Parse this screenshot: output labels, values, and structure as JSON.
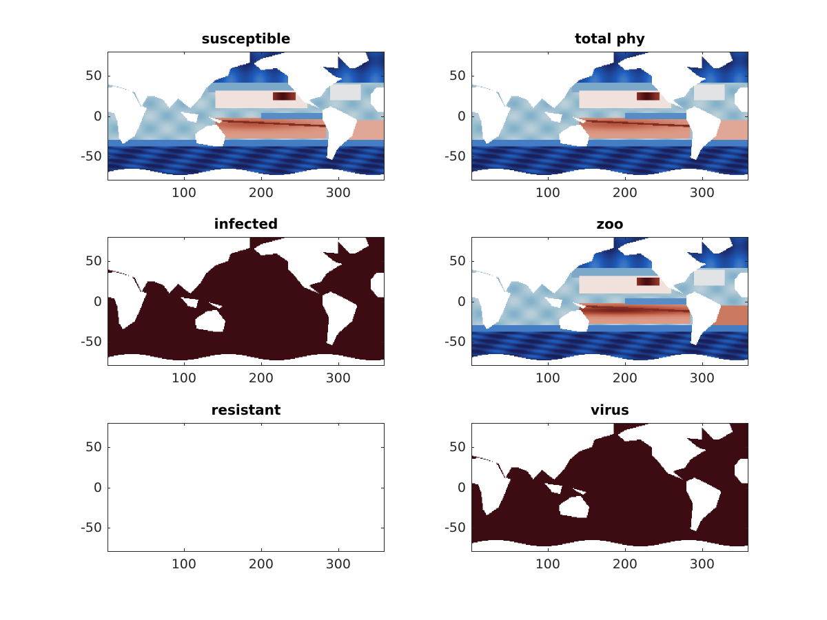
{
  "chart_data": {
    "type": "heatmap",
    "layout": "3x2 subplots",
    "xlim": [
      1,
      360
    ],
    "ylim": [
      -80,
      80
    ],
    "xticks": [
      100,
      200,
      300
    ],
    "xtick_labels": [
      "100",
      "200",
      "300"
    ],
    "yticks": [
      50,
      0,
      -50
    ],
    "ytick_labels": [
      "50",
      "0",
      "-50"
    ],
    "colormap": {
      "low": "#1a1f5a",
      "mid": "#f3ecea",
      "high": "#4a0d12"
    },
    "panels": [
      {
        "title": "susceptible",
        "field": "diverging"
      },
      {
        "title": "total phy",
        "field": "diverging"
      },
      {
        "title": "infected",
        "field": "uniform",
        "color": "#3d0c13"
      },
      {
        "title": "zoo",
        "field": "diverging-zoo"
      },
      {
        "title": "resistant",
        "field": "empty"
      },
      {
        "title": "virus",
        "field": "uniform",
        "color": "#3d0c13"
      }
    ]
  }
}
